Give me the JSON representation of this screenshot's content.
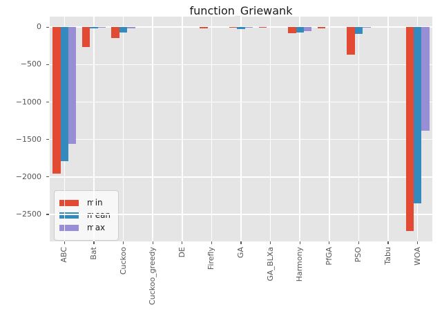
{
  "chart_data": {
    "type": "bar",
    "title": "function_Griewank",
    "categories": [
      "ABC",
      "Bat",
      "Cuckoo",
      "Cuckoo_greedy",
      "DE",
      "Firefly",
      "GA",
      "GA_BLXa",
      "Harmony",
      "PfGA",
      "PSO",
      "Tabu",
      "WOA"
    ],
    "series": [
      {
        "name": "min",
        "color": "#E24A33",
        "values": [
          -1960,
          -265,
          -150,
          0,
          0,
          -15,
          -12,
          -12,
          -85,
          -15,
          -365,
          0,
          -2720
        ]
      },
      {
        "name": "mean",
        "color": "#348ABD",
        "values": [
          -1790,
          -20,
          -75,
          0,
          0,
          0,
          -25,
          0,
          -75,
          0,
          -90,
          0,
          -2350
        ]
      },
      {
        "name": "max",
        "color": "#988ED5",
        "values": [
          -1560,
          -5,
          -20,
          0,
          0,
          0,
          -12,
          0,
          -55,
          0,
          -5,
          0,
          -1380
        ]
      }
    ],
    "xlabel": "",
    "ylabel": "",
    "ylim": [
      -2860,
      140
    ],
    "yticks": [
      0,
      -500,
      -1000,
      -1500,
      -2000,
      -2500
    ],
    "grid": true,
    "legend": {
      "entries": [
        "min",
        "mean",
        "max"
      ],
      "position": "lower left"
    },
    "style": {
      "axes_bg": "#E5E5E5",
      "grid_color": "#FFFFFF",
      "tick_color": "#555555",
      "title_color": "#1A1A1A"
    }
  }
}
